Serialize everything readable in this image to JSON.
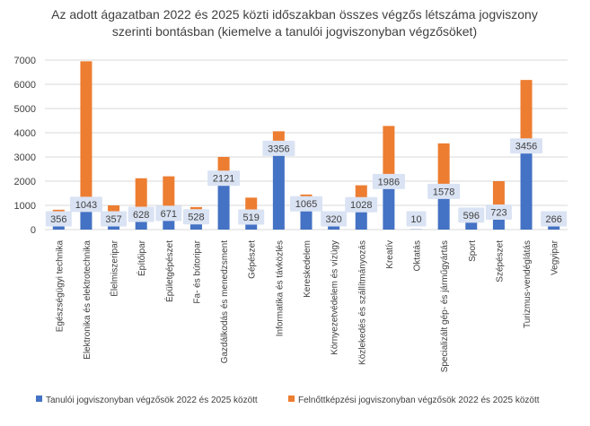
{
  "chart_data": {
    "type": "bar",
    "stacked": true,
    "title": "Az adott ágazatban 2022 és 2025 közti időszakban összes végzős létszáma jogviszony szerinti bontásban (kiemelve a tanulói jogviszonyban végzősöket)",
    "title_lines": [
      "Az adott ágazatban 2022 és 2025 közti időszakban összes végzős létszáma jogviszony",
      "szerinti bontásban (kiemelve a tanulói jogviszonyban végzősöket)"
    ],
    "xlabel": "",
    "ylabel": "",
    "ylim": [
      0,
      7000
    ],
    "yticks": [
      "0",
      "1000",
      "2000",
      "3000",
      "4000",
      "5000",
      "6000",
      "7000"
    ],
    "grid": true,
    "legend_position": "bottom",
    "categories": [
      "Egészségügyi technika",
      "Elektronika és elektrotechnika",
      "Élelmiszeripar",
      "Építőipar",
      "Épületgépészet",
      "Fa- és bútoripar",
      "Gazdálkodás és menedzsment",
      "Gépészet",
      "Informatika és távközlés",
      "Kereskedelem",
      "Környezetvédelem és vízügy",
      "Közlekedés és szállítmányozás",
      "Kreatív",
      "Oktatás",
      "Specializált gép- és járműgyártás",
      "Sport",
      "Szépészet",
      "Turizmus-vendéglátás",
      "Vegyipar"
    ],
    "series": [
      {
        "name": "Tanulói jogviszonyban végzősök 2022 és 2025 között",
        "color": "#4472C4",
        "values": [
          356,
          1043,
          357,
          628,
          671,
          528,
          2121,
          519,
          3356,
          1065,
          320,
          1028,
          1986,
          10,
          1578,
          596,
          723,
          3456,
          266
        ]
      },
      {
        "name": "Felnőttképzési jogviszonyban végzősök 2022 és 2025 között",
        "color": "#ED7D31",
        "values": [
          464,
          5907,
          643,
          1492,
          1529,
          402,
          879,
          801,
          704,
          385,
          0,
          802,
          2294,
          0,
          1982,
          0,
          1277,
          2724,
          0
        ]
      }
    ],
    "data_labels": [
      "356",
      "1043",
      "357",
      "628",
      "671",
      "528",
      "2121",
      "519",
      "3356",
      "1065",
      "320",
      "1028",
      "1986",
      "10",
      "1578",
      "596",
      "723",
      "3456",
      "266"
    ],
    "label_box_color": "#DAE3F3"
  }
}
